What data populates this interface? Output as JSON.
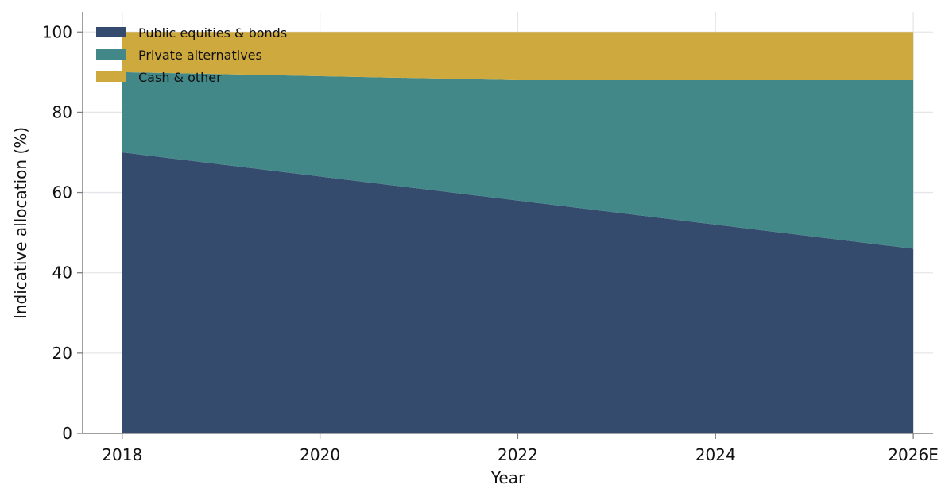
{
  "chart_data": {
    "type": "area",
    "stacked": true,
    "xlabel": "Year",
    "ylabel": "Indicative allocation (%)",
    "x": [
      2018,
      2022,
      2026
    ],
    "x_ticks": [
      {
        "value": 2018,
        "label": "2018"
      },
      {
        "value": 2020,
        "label": "2020"
      },
      {
        "value": 2022,
        "label": "2022"
      },
      {
        "value": 2024,
        "label": "2024"
      },
      {
        "value": 2026,
        "label": "2026E"
      }
    ],
    "xlim": [
      2017.6,
      2026.2
    ],
    "ylim": [
      0,
      105
    ],
    "y_ticks": [
      0,
      20,
      40,
      60,
      80,
      100
    ],
    "grid": true,
    "legend": "top-left",
    "series": [
      {
        "name": "Public equities & bonds",
        "values": [
          70,
          58,
          46
        ],
        "color": "#344b6d"
      },
      {
        "name": "Private alternatives",
        "values": [
          20,
          30,
          42
        ],
        "color": "#428888"
      },
      {
        "name": "Cash & other",
        "values": [
          10,
          12,
          12
        ],
        "color": "#cda93e"
      }
    ]
  }
}
